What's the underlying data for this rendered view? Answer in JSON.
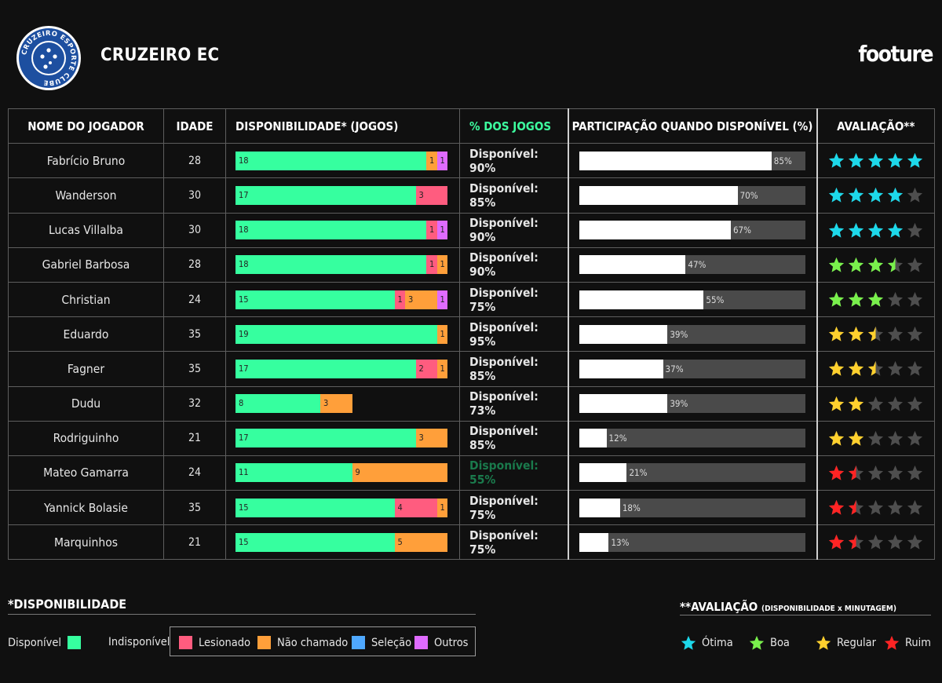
{
  "header": {
    "club_name": "CRUZEIRO EC",
    "brand": "footure"
  },
  "crest": {
    "text": "CRUZEIRO ESPORTE CLUBE"
  },
  "columns": {
    "name": "NOME DO JOGADOR",
    "age": "IDADE",
    "availability": "DISPONIBILIDADE* (JOGOS)",
    "pct_games": "% DOS JOGOS",
    "participation": "PARTICIPAÇÃO QUANDO DISPONÍVEL (%)",
    "rating": "AVALIAÇÃO**"
  },
  "colors": {
    "disponivel": "#36ff9f",
    "lesionado": "#ff5c7f",
    "nao_chamado": "#ff9f3a",
    "selecao": "#4fa9ff",
    "outros": "#df6bff",
    "otima": "#1dd8ea",
    "boa": "#79f04c",
    "regular": "#ffd02e",
    "ruim": "#ff2424",
    "empty_star": "#4e4e4e"
  },
  "chart_data": {
    "type": "table",
    "players": [
      {
        "name": "Fabrício Bruno",
        "age": "28",
        "available": 18,
        "lesionado": 0,
        "nao_chamado": 1,
        "selecao": 0,
        "outros": 1,
        "pct_label": "Disponível: 90%",
        "participation": 85,
        "participation_label": "85%",
        "rating": 5,
        "rating_color": "otima"
      },
      {
        "name": "Wanderson",
        "age": "30",
        "available": 17,
        "lesionado": 3,
        "nao_chamado": 0,
        "selecao": 0,
        "outros": 0,
        "pct_label": "Disponível: 85%",
        "participation": 70,
        "participation_label": "70%",
        "rating": 4,
        "rating_color": "otima"
      },
      {
        "name": "Lucas Villalba",
        "age": "30",
        "available": 18,
        "lesionado": 1,
        "nao_chamado": 0,
        "selecao": 0,
        "outros": 1,
        "pct_label": "Disponível: 90%",
        "participation": 67,
        "participation_label": "67%",
        "rating": 4,
        "rating_color": "otima"
      },
      {
        "name": "Gabriel Barbosa",
        "age": "28",
        "available": 18,
        "lesionado": 1,
        "nao_chamado": 1,
        "selecao": 0,
        "outros": 0,
        "pct_label": "Disponível: 90%",
        "participation": 47,
        "participation_label": "47%",
        "rating": 3.5,
        "rating_color": "boa"
      },
      {
        "name": "Christian",
        "age": "24",
        "available": 15,
        "lesionado": 1,
        "nao_chamado": 3,
        "selecao": 0,
        "outros": 1,
        "pct_label": "Disponível: 75%",
        "participation": 55,
        "participation_label": "55%",
        "rating": 3,
        "rating_color": "boa"
      },
      {
        "name": "Eduardo",
        "age": "35",
        "available": 19,
        "lesionado": 0,
        "nao_chamado": 1,
        "selecao": 0,
        "outros": 0,
        "pct_label": "Disponível: 95%",
        "participation": 39,
        "participation_label": "39%",
        "rating": 2.5,
        "rating_color": "regular"
      },
      {
        "name": "Fagner",
        "age": "35",
        "available": 17,
        "lesionado": 2,
        "nao_chamado": 1,
        "selecao": 0,
        "outros": 0,
        "pct_label": "Disponível: 85%",
        "participation": 37,
        "participation_label": "37%",
        "rating": 2.5,
        "rating_color": "regular"
      },
      {
        "name": "Dudu",
        "age": "32",
        "available": 8,
        "lesionado": 0,
        "nao_chamado": 3,
        "selecao": 0,
        "outros": 0,
        "pct_label": "Disponível: 73%",
        "participation": 39,
        "participation_label": "39%",
        "rating": 2,
        "rating_color": "regular"
      },
      {
        "name": "Rodriguinho",
        "age": "21",
        "available": 17,
        "lesionado": 0,
        "nao_chamado": 3,
        "selecao": 0,
        "outros": 0,
        "pct_label": "Disponível: 85%",
        "participation": 12,
        "participation_label": "12%",
        "rating": 2,
        "rating_color": "regular"
      },
      {
        "name": "Mateo Gamarra",
        "age": "24",
        "available": 11,
        "lesionado": 0,
        "nao_chamado": 9,
        "selecao": 0,
        "outros": 0,
        "pct_label": "Disponível: 55%",
        "participation": 21,
        "participation_label": "21%",
        "rating": 1.5,
        "rating_color": "ruim"
      },
      {
        "name": "Yannick Bolasie",
        "age": "35",
        "available": 15,
        "lesionado": 4,
        "nao_chamado": 1,
        "selecao": 0,
        "outros": 0,
        "pct_label": "Disponível: 75%",
        "participation": 18,
        "participation_label": "18%",
        "rating": 1.5,
        "rating_color": "ruim"
      },
      {
        "name": "Marquinhos",
        "age": "21",
        "available": 15,
        "lesionado": 0,
        "nao_chamado": 5,
        "selecao": 0,
        "outros": 0,
        "pct_label": "Disponível: 75%",
        "participation": 13,
        "participation_label": "13%",
        "rating": 1.5,
        "rating_color": "ruim"
      }
    ]
  },
  "legend_availability": {
    "title": "*DISPONIBILIDADE",
    "disponivel": "Disponível",
    "indisponivel": "Indisponível",
    "lesionado": "Lesionado",
    "nao_chamado": "Não chamado",
    "selecao": "Seleção",
    "outros": "Outros"
  },
  "legend_rating": {
    "title": "**AVALIAÇÃO",
    "subtitle": "(DISPONIBILIDADE x MINUTAGEM)",
    "otima": "Ótima",
    "boa": "Boa",
    "regular": "Regular",
    "ruim": "Ruim"
  }
}
